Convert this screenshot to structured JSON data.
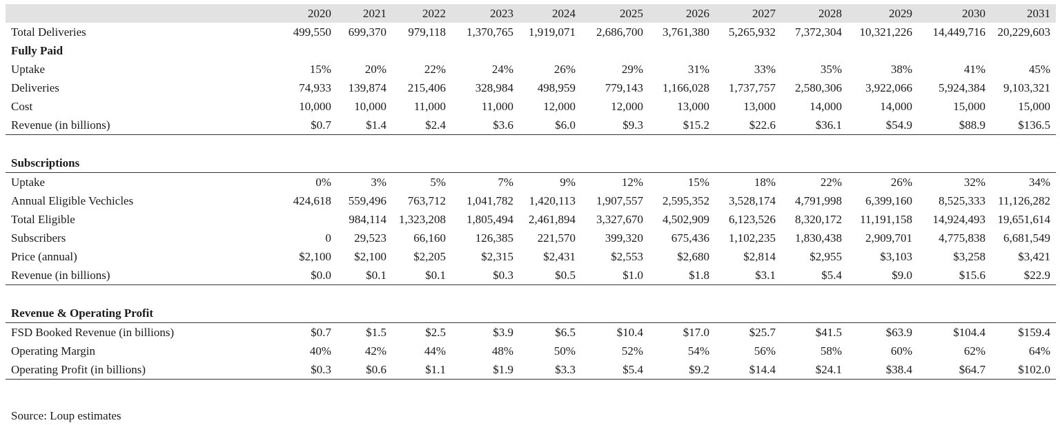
{
  "years": [
    "2020",
    "2021",
    "2022",
    "2023",
    "2024",
    "2025",
    "2026",
    "2027",
    "2028",
    "2029",
    "2030",
    "2031"
  ],
  "total_deliveries": {
    "label": "Total Deliveries",
    "values": [
      "499,550",
      "699,370",
      "979,118",
      "1,370,765",
      "1,919,071",
      "2,686,700",
      "3,761,380",
      "5,265,932",
      "7,372,304",
      "10,321,226",
      "14,449,716",
      "20,229,603"
    ]
  },
  "fully_paid": {
    "title": "Fully Paid",
    "rows": [
      {
        "label": "Uptake",
        "values": [
          "15%",
          "20%",
          "22%",
          "24%",
          "26%",
          "29%",
          "31%",
          "33%",
          "35%",
          "38%",
          "41%",
          "45%"
        ]
      },
      {
        "label": "Deliveries",
        "values": [
          "74,933",
          "139,874",
          "215,406",
          "328,984",
          "498,959",
          "779,143",
          "1,166,028",
          "1,737,757",
          "2,580,306",
          "3,922,066",
          "5,924,384",
          "9,103,321"
        ]
      },
      {
        "label": "Cost",
        "values": [
          "10,000",
          "10,000",
          "11,000",
          "11,000",
          "12,000",
          "12,000",
          "13,000",
          "13,000",
          "14,000",
          "14,000",
          "15,000",
          "15,000"
        ]
      },
      {
        "label": "Revenue (in billions)",
        "values": [
          "$0.7",
          "$1.4",
          "$2.4",
          "$3.6",
          "$6.0",
          "$9.3",
          "$15.2",
          "$22.6",
          "$36.1",
          "$54.9",
          "$88.9",
          "$136.5"
        ]
      }
    ]
  },
  "subscriptions": {
    "title": "Subscriptions",
    "rows": [
      {
        "label": "Uptake",
        "values": [
          "0%",
          "3%",
          "5%",
          "7%",
          "9%",
          "12%",
          "15%",
          "18%",
          "22%",
          "26%",
          "32%",
          "34%"
        ]
      },
      {
        "label": "Annual Eligible Vechicles",
        "values": [
          "424,618",
          "559,496",
          "763,712",
          "1,041,782",
          "1,420,113",
          "1,907,557",
          "2,595,352",
          "3,528,174",
          "4,791,998",
          "6,399,160",
          "8,525,333",
          "11,126,282"
        ]
      },
      {
        "label": "Total Eligible",
        "values": [
          "",
          "984,114",
          "1,323,208",
          "1,805,494",
          "2,461,894",
          "3,327,670",
          "4,502,909",
          "6,123,526",
          "8,320,172",
          "11,191,158",
          "14,924,493",
          "19,651,614"
        ]
      },
      {
        "label": "Subscribers",
        "values": [
          "0",
          "29,523",
          "66,160",
          "126,385",
          "221,570",
          "399,320",
          "675,436",
          "1,102,235",
          "1,830,438",
          "2,909,701",
          "4,775,838",
          "6,681,549"
        ]
      },
      {
        "label": "Price (annual)",
        "values": [
          "$2,100",
          "$2,100",
          "$2,205",
          "$2,315",
          "$2,431",
          "$2,553",
          "$2,680",
          "$2,814",
          "$2,955",
          "$3,103",
          "$3,258",
          "$3,421"
        ]
      },
      {
        "label": "Revenue (in billions)",
        "values": [
          "$0.0",
          "$0.1",
          "$0.1",
          "$0.3",
          "$0.5",
          "$1.0",
          "$1.8",
          "$3.1",
          "$5.4",
          "$9.0",
          "$15.6",
          "$22.9"
        ]
      }
    ]
  },
  "revenue_profit": {
    "title": "Revenue & Operating Profit",
    "rows": [
      {
        "label": "FSD Booked Revenue (in billions)",
        "values": [
          "$0.7",
          "$1.5",
          "$2.5",
          "$3.9",
          "$6.5",
          "$10.4",
          "$17.0",
          "$25.7",
          "$41.5",
          "$63.9",
          "$104.4",
          "$159.4"
        ]
      },
      {
        "label": "Operating Margin",
        "values": [
          "40%",
          "42%",
          "44%",
          "48%",
          "50%",
          "52%",
          "54%",
          "56%",
          "58%",
          "60%",
          "62%",
          "64%"
        ]
      },
      {
        "label": "Operating Profit (in billions)",
        "values": [
          "$0.3",
          "$0.6",
          "$1.1",
          "$1.9",
          "$3.3",
          "$5.4",
          "$9.2",
          "$14.4",
          "$24.1",
          "$38.4",
          "$64.7",
          "$102.0"
        ]
      }
    ]
  },
  "source": "Source: Loup estimates"
}
